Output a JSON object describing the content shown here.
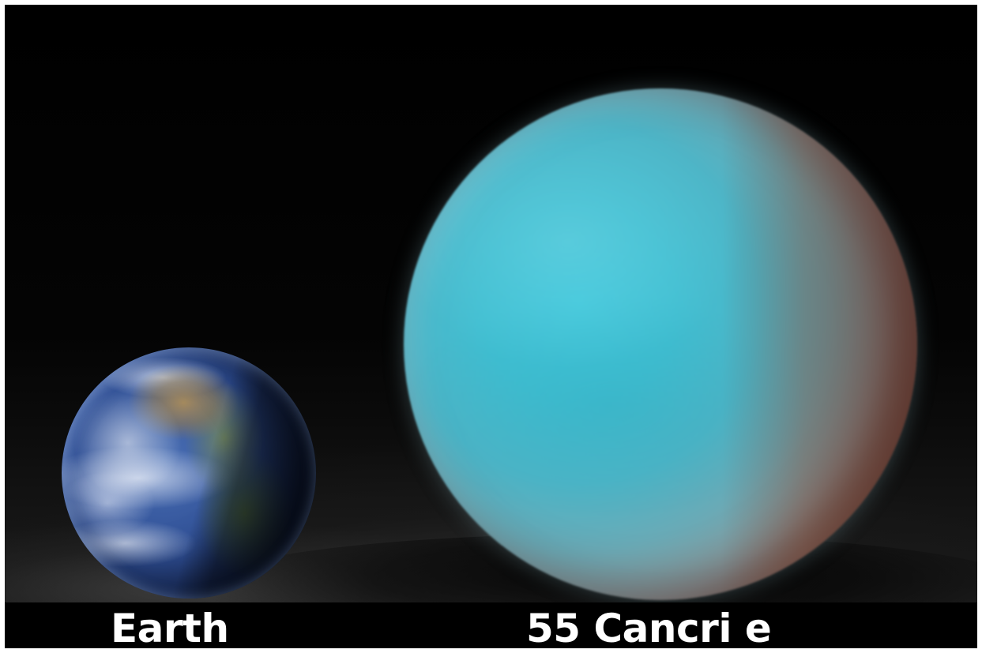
{
  "labels": {
    "earth": "Earth",
    "cancri": "55 Cancri e"
  },
  "colors": {
    "background": "#000000",
    "label_text": "#ffffff",
    "cancri_day_side": "#41bfd2",
    "cancri_night_side": "#8a5846",
    "earth_ocean": "#2f4f95"
  }
}
